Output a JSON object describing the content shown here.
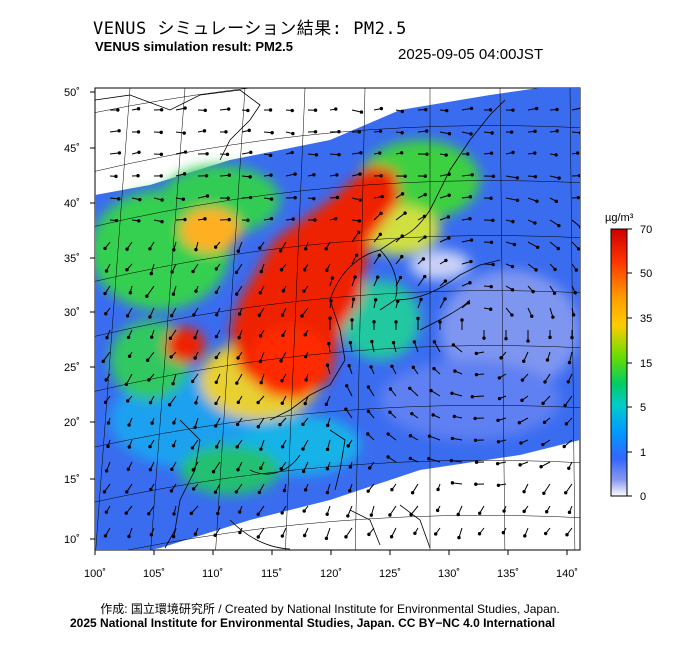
{
  "title_jp": "VENUS シミュレーション結果: PM2.5",
  "title_en": "VENUS simulation result: PM2.5",
  "timestamp": "2025-09-05 04:00JST",
  "lat_ticks": [
    "50˚",
    "45˚",
    "40˚",
    "35˚",
    "30˚",
    "25˚",
    "20˚",
    "15˚",
    "10˚"
  ],
  "lon_ticks": [
    "100˚",
    "105˚",
    "110˚",
    "115˚",
    "120˚",
    "125˚",
    "130˚",
    "135˚",
    "140˚"
  ],
  "colorbar": {
    "unit": "µg/m³",
    "labels": [
      "70",
      "50",
      "35",
      "15",
      "5",
      "1",
      "0"
    ],
    "colors": [
      "#cc0000",
      "#ff3300",
      "#ff9900",
      "#ffcc00",
      "#66dd00",
      "#00cc66",
      "#00cccc",
      "#0099ff",
      "#3366ff",
      "#8899ee",
      "#ffffff"
    ]
  },
  "credit_jp": "作成: 国立環境研究所 / Created by National Institute for Environmental Studies, Japan.",
  "copyright": "2025 National Institute for Environmental Studies, Japan. CC BY−NC 4.0 International"
}
